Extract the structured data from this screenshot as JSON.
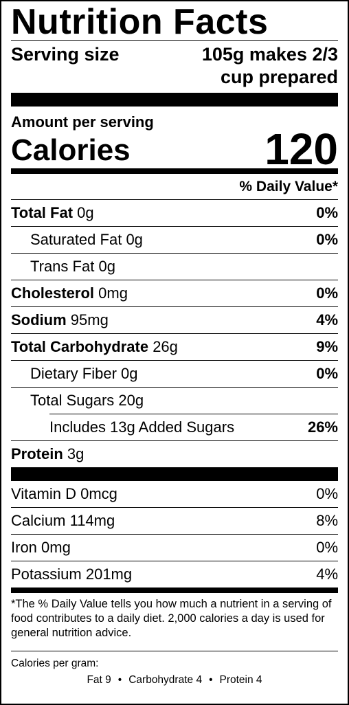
{
  "title": "Nutrition Facts",
  "serving": {
    "label": "Serving size",
    "value_line1": "105g makes 2/3",
    "value_line2": "cup prepared"
  },
  "amount_per_serving": "Amount per serving",
  "calories": {
    "label": "Calories",
    "value": "120"
  },
  "daily_value_header": "% Daily Value*",
  "nutrients": [
    {
      "name": "Total Fat",
      "amount": "0g",
      "dv": "0%"
    },
    {
      "name": "Saturated Fat",
      "amount": "0g",
      "dv": "0%"
    },
    {
      "name": "Trans Fat",
      "amount": "0g",
      "dv": ""
    },
    {
      "name": "Cholesterol",
      "amount": "0mg",
      "dv": "0%"
    },
    {
      "name": "Sodium",
      "amount": "95mg",
      "dv": "4%"
    },
    {
      "name": "Total Carbohydrate",
      "amount": "26g",
      "dv": "9%"
    },
    {
      "name": "Dietary Fiber",
      "amount": "0g",
      "dv": "0%"
    },
    {
      "name": "Total Sugars",
      "amount": "20g",
      "dv": ""
    },
    {
      "name": "Includes 13g Added Sugars",
      "amount": "",
      "dv": "26%"
    },
    {
      "name": "Protein",
      "amount": "3g",
      "dv": ""
    }
  ],
  "vitamins": [
    {
      "name": "Vitamin D",
      "amount": "0mcg",
      "dv": "0%"
    },
    {
      "name": "Calcium",
      "amount": "114mg",
      "dv": "8%"
    },
    {
      "name": "Iron",
      "amount": "0mg",
      "dv": "0%"
    },
    {
      "name": "Potassium",
      "amount": "201mg",
      "dv": "4%"
    }
  ],
  "footnote": "*The % Daily Value tells you how much a nutrient in a serving of food contributes to a daily diet. 2,000 calories a day is used for general nutrition advice.",
  "calories_per_gram": {
    "heading": "Calories per gram:",
    "fat": "Fat 9",
    "bullet": "•",
    "carbohydrate": "Carbohydrate 4",
    "protein": "Protein 4"
  }
}
